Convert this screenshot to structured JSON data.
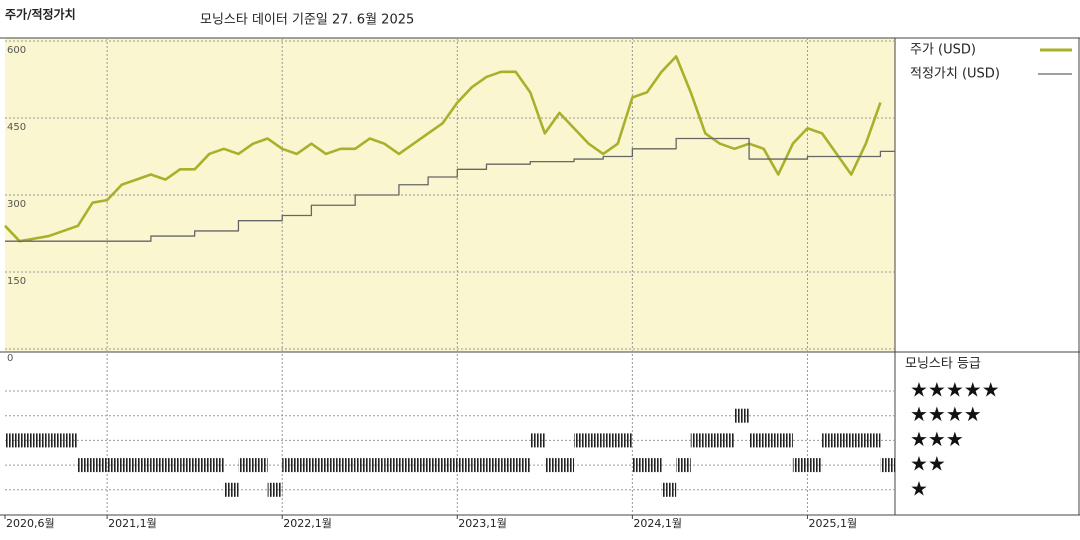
{
  "chart_data": {
    "type": "line",
    "title": "주가/적정가치",
    "subtitle": "모닝스타 데이터 기준일 27. 6월 2025",
    "x": [
      "2020-06",
      "2020-07",
      "2020-08",
      "2020-09",
      "2020-10",
      "2020-11",
      "2020-12",
      "2021-01",
      "2021-02",
      "2021-03",
      "2021-04",
      "2021-05",
      "2021-06",
      "2021-07",
      "2021-08",
      "2021-09",
      "2021-10",
      "2021-11",
      "2021-12",
      "2022-01",
      "2022-02",
      "2022-03",
      "2022-04",
      "2022-05",
      "2022-06",
      "2022-07",
      "2022-08",
      "2022-09",
      "2022-10",
      "2022-11",
      "2022-12",
      "2023-01",
      "2023-02",
      "2023-03",
      "2023-04",
      "2023-05",
      "2023-06",
      "2023-07",
      "2023-08",
      "2023-09",
      "2023-10",
      "2023-11",
      "2023-12",
      "2024-01",
      "2024-02",
      "2024-03",
      "2024-04",
      "2024-05",
      "2024-06",
      "2024-07",
      "2024-08",
      "2024-09",
      "2024-10",
      "2024-11",
      "2024-12",
      "2025-01",
      "2025-02",
      "2025-03",
      "2025-04",
      "2025-05",
      "2025-06"
    ],
    "series": [
      {
        "name": "주가 (USD)",
        "color": "#a9b02b",
        "values": [
          240,
          210,
          215,
          220,
          230,
          240,
          285,
          290,
          320,
          330,
          340,
          330,
          350,
          350,
          380,
          390,
          380,
          400,
          410,
          390,
          380,
          400,
          380,
          390,
          390,
          410,
          400,
          380,
          400,
          420,
          440,
          480,
          510,
          530,
          540,
          540,
          500,
          420,
          460,
          430,
          400,
          380,
          400,
          490,
          500,
          540,
          570,
          500,
          420,
          400,
          390,
          400,
          390,
          340,
          400,
          430,
          420,
          380,
          340,
          400,
          480
        ]
      },
      {
        "name": "적정가치 (USD)",
        "color": "#666666",
        "step": true,
        "values": [
          210,
          210,
          210,
          210,
          210,
          210,
          210,
          210,
          210,
          210,
          220,
          220,
          220,
          230,
          230,
          230,
          250,
          250,
          250,
          260,
          260,
          280,
          280,
          280,
          300,
          300,
          300,
          320,
          320,
          335,
          335,
          350,
          350,
          360,
          360,
          360,
          365,
          365,
          365,
          370,
          370,
          375,
          375,
          390,
          390,
          390,
          410,
          410,
          410,
          410,
          410,
          370,
          370,
          370,
          370,
          375,
          375,
          375,
          375,
          375,
          385
        ]
      }
    ],
    "xlim": [
      "2020-06",
      "2025-07"
    ],
    "xticks": [
      {
        "value": "2020-06",
        "label": "2020,6월"
      },
      {
        "value": "2021-01",
        "label": "2021,1월"
      },
      {
        "value": "2022-01",
        "label": "2022,1월"
      },
      {
        "value": "2023-01",
        "label": "2023,1월"
      },
      {
        "value": "2024-01",
        "label": "2024,1월"
      },
      {
        "value": "2025-01",
        "label": "2025,1월"
      }
    ],
    "ylim": [
      0,
      600
    ],
    "yticks": [
      0,
      150,
      300,
      450,
      600
    ],
    "grid": true,
    "background": "#faf6cf",
    "rating": {
      "title": "모닝스타 등급",
      "labels": [
        "★",
        "★★",
        "★★★",
        "★★★★",
        "★★★★★"
      ],
      "values": [
        3,
        3,
        3,
        3,
        3,
        2,
        2,
        2,
        2,
        2,
        2,
        2,
        2,
        2,
        2,
        1,
        2,
        2,
        1,
        2,
        2,
        2,
        2,
        2,
        2,
        2,
        2,
        2,
        2,
        2,
        2,
        2,
        2,
        2,
        2,
        2,
        3,
        2,
        2,
        3,
        3,
        3,
        3,
        2,
        2,
        1,
        2,
        3,
        3,
        3,
        4,
        3,
        3,
        3,
        2,
        2,
        3,
        3,
        3,
        3,
        2
      ]
    }
  }
}
